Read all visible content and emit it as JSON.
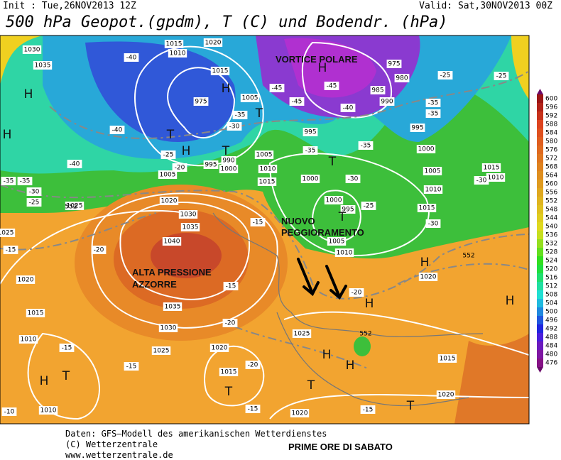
{
  "header": {
    "init": "Init : Tue,26NOV2013 12Z",
    "valid": "Valid: Sat,30NOV2013 00Z",
    "title": "500 hPa Geopot.(gpdm), T (C) und Bodendr. (hPa)"
  },
  "annotations": {
    "vortex": "VORTICE POLARE",
    "new_1": "NUOVO",
    "new_2": "PEGGIORAMENTO",
    "high_1": "ALTA PRESSIONE",
    "high_2": "AZZORRE"
  },
  "map": {
    "isobar_labels": [
      "1030",
      "1035",
      "1015",
      "1020",
      "1010",
      "1015",
      "975",
      "1005",
      "995",
      "1005",
      "990",
      "1000",
      "995",
      "1005",
      "1010",
      "1015",
      "1020",
      "1025",
      "1030",
      "1035",
      "1040",
      "1035",
      "1030",
      "1025",
      "1020",
      "1015",
      "1010",
      "1010",
      "1015",
      "1020",
      "1025",
      "1020",
      "1000",
      "1000",
      "995",
      "1005",
      "1010",
      "1015",
      "1010",
      "1005",
      "1000",
      "995",
      "990",
      "985",
      "980",
      "975",
      "1015",
      "1020",
      "1020",
      "1015",
      "1010",
      "1025"
    ],
    "temperature_labels": [
      "-40",
      "-45",
      "-45",
      "-45",
      "-40",
      "-35",
      "-35",
      "-35",
      "-30",
      "-30",
      "-30",
      "-30",
      "-30",
      "-25",
      "-25",
      "-25",
      "-25",
      "-25",
      "-20",
      "-20",
      "-20",
      "-20",
      "-20",
      "-15",
      "-15",
      "-15",
      "-15",
      "-15",
      "-15",
      "-15",
      "-10",
      "-35",
      "-35",
      "-40",
      "-40",
      "-35",
      "-35"
    ],
    "height_labels": [
      "552",
      "552",
      "552"
    ],
    "centers": [
      "H",
      "H",
      "H",
      "H",
      "H",
      "H",
      "H",
      "H",
      "H",
      "H",
      "H",
      "T",
      "T",
      "T",
      "T",
      "T",
      "T",
      "T",
      "T",
      "T"
    ]
  },
  "colorbar": {
    "labels": [
      600,
      596,
      592,
      588,
      584,
      580,
      576,
      572,
      568,
      564,
      560,
      556,
      552,
      548,
      544,
      540,
      536,
      532,
      528,
      524,
      520,
      516,
      512,
      508,
      504,
      500,
      496,
      492,
      488,
      484,
      480,
      476
    ]
  },
  "footer": {
    "source": "Daten: GFS—Modell des amerikanischen Wetterdienstes",
    "copyright": "(C) Wetterzentrale",
    "url": "www.wetterzentrale.de",
    "caption": "PRIME ORE DI SABATO"
  }
}
